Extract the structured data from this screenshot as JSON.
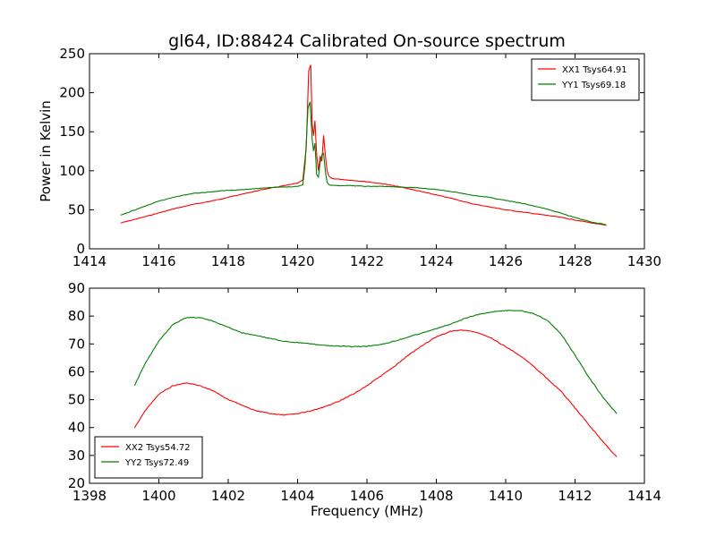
{
  "chart_data": [
    {
      "type": "line",
      "title": "gl64, ID:88424 Calibrated On-source spectrum",
      "xlabel": "",
      "ylabel": "Power in Kelvin",
      "xlim": [
        1414,
        1430
      ],
      "ylim": [
        0,
        250
      ],
      "xticks": [
        "1414",
        "1416",
        "1418",
        "1420",
        "1422",
        "1424",
        "1426",
        "1428",
        "1430"
      ],
      "yticks": [
        "0",
        "50",
        "100",
        "150",
        "200",
        "250"
      ],
      "grid": false,
      "legend_position": "top-right",
      "series": [
        {
          "name": "XX1 Tsys64.91",
          "color": "#ff0000",
          "x": [
            1414.9,
            1415.5,
            1416,
            1416.5,
            1417,
            1417.5,
            1418,
            1418.5,
            1419,
            1419.5,
            1420,
            1420.15,
            1420.25,
            1420.32,
            1420.38,
            1420.42,
            1420.46,
            1420.5,
            1420.55,
            1420.6,
            1420.65,
            1420.7,
            1420.75,
            1420.8,
            1420.85,
            1420.9,
            1421,
            1421.5,
            1422,
            1422.5,
            1423,
            1423.5,
            1424,
            1424.5,
            1425,
            1425.5,
            1426,
            1426.5,
            1427,
            1427.5,
            1428,
            1428.5,
            1428.9
          ],
          "values": [
            33,
            40,
            46,
            52,
            57,
            61,
            66,
            71,
            76,
            80,
            84,
            88,
            130,
            228,
            236,
            160,
            145,
            164,
            120,
            100,
            118,
            112,
            145,
            120,
            100,
            93,
            90,
            88,
            86,
            83,
            79,
            74,
            69,
            64,
            58,
            54,
            50,
            47,
            44,
            41,
            37,
            33,
            30
          ]
        },
        {
          "name": "YY1 Tsys69.18",
          "color": "#008000",
          "x": [
            1414.9,
            1415.5,
            1416,
            1416.5,
            1417,
            1417.5,
            1418,
            1418.5,
            1419,
            1419.5,
            1420,
            1420.15,
            1420.22,
            1420.3,
            1420.36,
            1420.42,
            1420.46,
            1420.5,
            1420.55,
            1420.6,
            1420.65,
            1420.7,
            1420.75,
            1420.8,
            1420.85,
            1420.9,
            1421,
            1421.5,
            1422,
            1422.5,
            1423,
            1423.5,
            1424,
            1424.5,
            1425,
            1425.5,
            1426,
            1426.5,
            1427,
            1427.5,
            1428,
            1428.5,
            1428.9
          ],
          "values": [
            43,
            53,
            61,
            67,
            71,
            73,
            75,
            76,
            78,
            79,
            80,
            82,
            110,
            180,
            188,
            140,
            125,
            135,
            95,
            92,
            110,
            120,
            122,
            100,
            85,
            82,
            81,
            81,
            80,
            80,
            79,
            78,
            76,
            73,
            69,
            66,
            62,
            58,
            53,
            47,
            40,
            34,
            31
          ]
        }
      ]
    },
    {
      "type": "line",
      "title": "",
      "xlabel": "Frequency (MHz)",
      "ylabel": "",
      "xlim": [
        1398,
        1414
      ],
      "ylim": [
        20,
        90
      ],
      "xticks": [
        "1398",
        "1400",
        "1402",
        "1404",
        "1406",
        "1408",
        "1410",
        "1412",
        "1414"
      ],
      "yticks": [
        "20",
        "30",
        "40",
        "50",
        "60",
        "70",
        "80",
        "90"
      ],
      "grid": false,
      "legend_position": "bottom-left",
      "series": [
        {
          "name": "XX2 Tsys54.72",
          "color": "#ff0000",
          "x": [
            1399.3,
            1399.6,
            1400,
            1400.4,
            1400.8,
            1401.2,
            1401.6,
            1402,
            1402.4,
            1402.8,
            1403.2,
            1403.6,
            1404,
            1404.4,
            1404.8,
            1405.2,
            1405.6,
            1406,
            1406.4,
            1406.8,
            1407.2,
            1407.6,
            1408,
            1408.4,
            1408.8,
            1409.2,
            1409.6,
            1410,
            1410.4,
            1410.8,
            1411.2,
            1411.6,
            1412,
            1412.4,
            1412.8,
            1413.2
          ],
          "values": [
            40,
            46,
            52,
            55,
            56,
            55,
            53,
            50,
            48,
            46,
            45,
            44.5,
            45,
            46,
            47.5,
            49.5,
            52,
            55,
            58.5,
            62,
            66,
            69.5,
            72.5,
            74.5,
            75,
            74,
            72,
            69,
            66,
            62,
            57.5,
            53,
            47,
            41,
            35,
            29.5
          ]
        },
        {
          "name": "YY2 Tsys72.49",
          "color": "#008000",
          "x": [
            1399.3,
            1399.6,
            1400,
            1400.4,
            1400.8,
            1401.2,
            1401.6,
            1402,
            1402.4,
            1402.8,
            1403.2,
            1403.6,
            1404,
            1404.4,
            1404.8,
            1405.2,
            1405.6,
            1406,
            1406.4,
            1406.8,
            1407.2,
            1407.6,
            1408,
            1408.4,
            1408.8,
            1409.2,
            1409.6,
            1410,
            1410.4,
            1410.8,
            1411.2,
            1411.6,
            1412,
            1412.4,
            1412.8,
            1413.2
          ],
          "values": [
            55,
            63,
            71,
            77,
            79.5,
            79.5,
            78,
            76,
            74,
            73,
            72,
            71,
            70.5,
            70,
            69.5,
            69.2,
            69,
            69.2,
            69.8,
            71,
            72.5,
            74,
            75.5,
            77,
            79,
            80.5,
            81.5,
            82,
            82,
            81,
            78.5,
            73.5,
            66,
            58,
            51,
            45
          ]
        }
      ]
    }
  ]
}
